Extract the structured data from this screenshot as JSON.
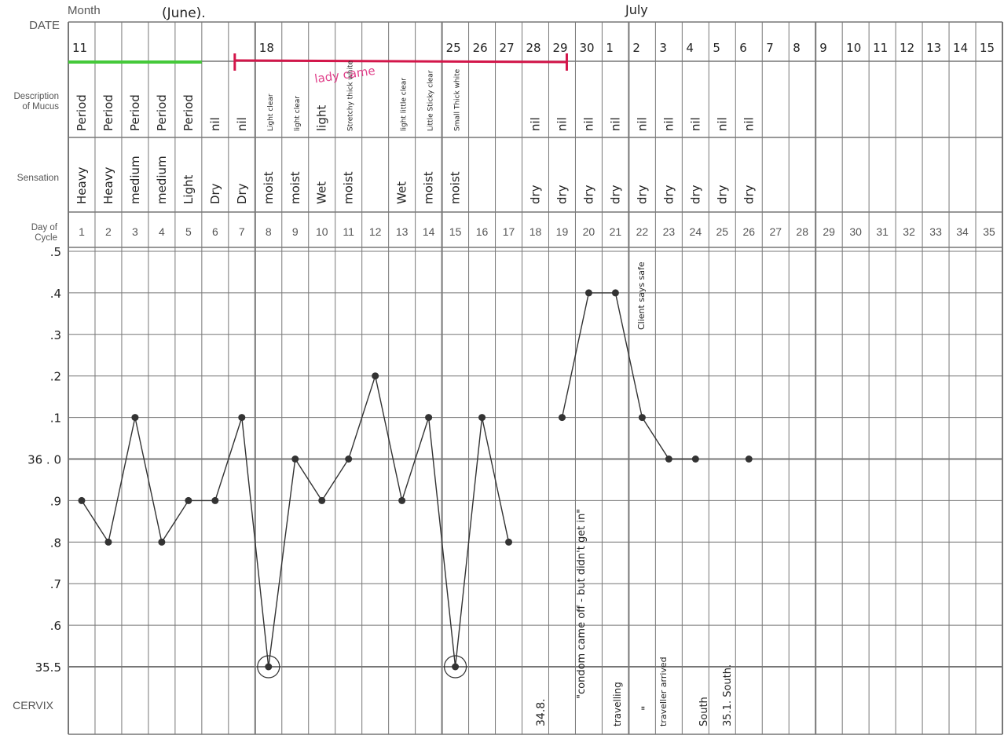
{
  "labels": {
    "month": "Month",
    "date": "DATE",
    "description_line1": "Description",
    "description_line2": "of Mucus",
    "sensation": "Sensation",
    "day_line1": "Day of",
    "day_line2": "Cycle",
    "cervix": "CERVIX"
  },
  "months": {
    "first": "(June).",
    "second": "July"
  },
  "dates": [
    "11",
    "",
    "",
    "",
    "",
    "",
    "",
    "18",
    "",
    "",
    "",
    "",
    "",
    "",
    "25",
    "26",
    "27",
    "28",
    "29",
    "30",
    "1",
    "2",
    "3",
    "4",
    "5",
    "6",
    "7",
    "8",
    "9",
    "10",
    "11",
    "12",
    "13",
    "14",
    "15"
  ],
  "mucus": [
    "Period",
    "Period",
    "Period",
    "Period",
    "Period",
    "nil",
    "nil",
    "Light clear",
    "light clear",
    "light",
    "Stretchy thick white",
    "",
    "light little clear",
    "Little Sticky clear",
    "Small Thick white",
    "",
    "",
    "nil",
    "nil",
    "nil",
    "nil",
    "nil",
    "nil",
    "nil",
    "nil",
    "nil",
    "",
    "",
    "",
    "",
    "",
    "",
    "",
    "",
    ""
  ],
  "sensation": [
    "Heavy",
    "Heavy",
    "medium",
    "medium",
    "Light",
    "Dry",
    "Dry",
    "moist",
    "moist",
    "Wet",
    "moist",
    "",
    "Wet",
    "moist",
    "moist",
    "",
    "",
    "dry",
    "dry",
    "dry",
    "dry",
    "dry",
    "dry",
    "dry",
    "dry",
    "dry",
    "",
    "",
    "",
    "",
    "",
    "",
    "",
    "",
    ""
  ],
  "cycle_days": [
    "1",
    "2",
    "3",
    "4",
    "5",
    "6",
    "7",
    "8",
    "9",
    "10",
    "11",
    "12",
    "13",
    "14",
    "15",
    "16",
    "17",
    "18",
    "19",
    "20",
    "21",
    "22",
    "23",
    "24",
    "25",
    "26",
    "27",
    "28",
    "29",
    "30",
    "31",
    "32",
    "33",
    "34",
    "35"
  ],
  "y_tick_labels": [
    ".5",
    ".4",
    ".3",
    ".2",
    ".1",
    "36 . 0",
    ".9",
    ".8",
    ".7",
    ".6",
    "35.5"
  ],
  "annotations": {
    "bleed_note": "lady came",
    "client_note": "Client says safe",
    "comment": "\"condom came off - but didn't get in\"",
    "travelling": "travelling"
  },
  "cervix_notes": [
    "34.8.",
    "",
    "\"",
    "traveller arrived",
    "South",
    "35.1. South."
  ],
  "colors": {
    "grid": "#777777",
    "ink": "#333333",
    "green": "#45c93a",
    "red": "#d3164a",
    "pink": "#e0408a"
  },
  "chart_data": {
    "type": "line",
    "title": "",
    "xlabel": "Day of Cycle",
    "ylabel": "",
    "ylim": [
      35.5,
      36.5
    ],
    "x": [
      1,
      2,
      3,
      4,
      5,
      6,
      7,
      8,
      9,
      10,
      11,
      12,
      13,
      14,
      15,
      16,
      17,
      19,
      20,
      21,
      22,
      23,
      24,
      26
    ],
    "series": [
      {
        "values": [
          35.9,
          35.8,
          36.1,
          35.8,
          35.9,
          35.9,
          36.1,
          35.5,
          36.0,
          35.9,
          36.0,
          36.2,
          35.9,
          36.1,
          35.5,
          36.1,
          35.8,
          36.1,
          36.4,
          36.4,
          36.1,
          36.0,
          36.0,
          36.0
        ]
      }
    ],
    "circled_days": [
      8,
      15
    ],
    "connected_ranges": [
      [
        1,
        17
      ],
      [
        19,
        24
      ]
    ]
  }
}
